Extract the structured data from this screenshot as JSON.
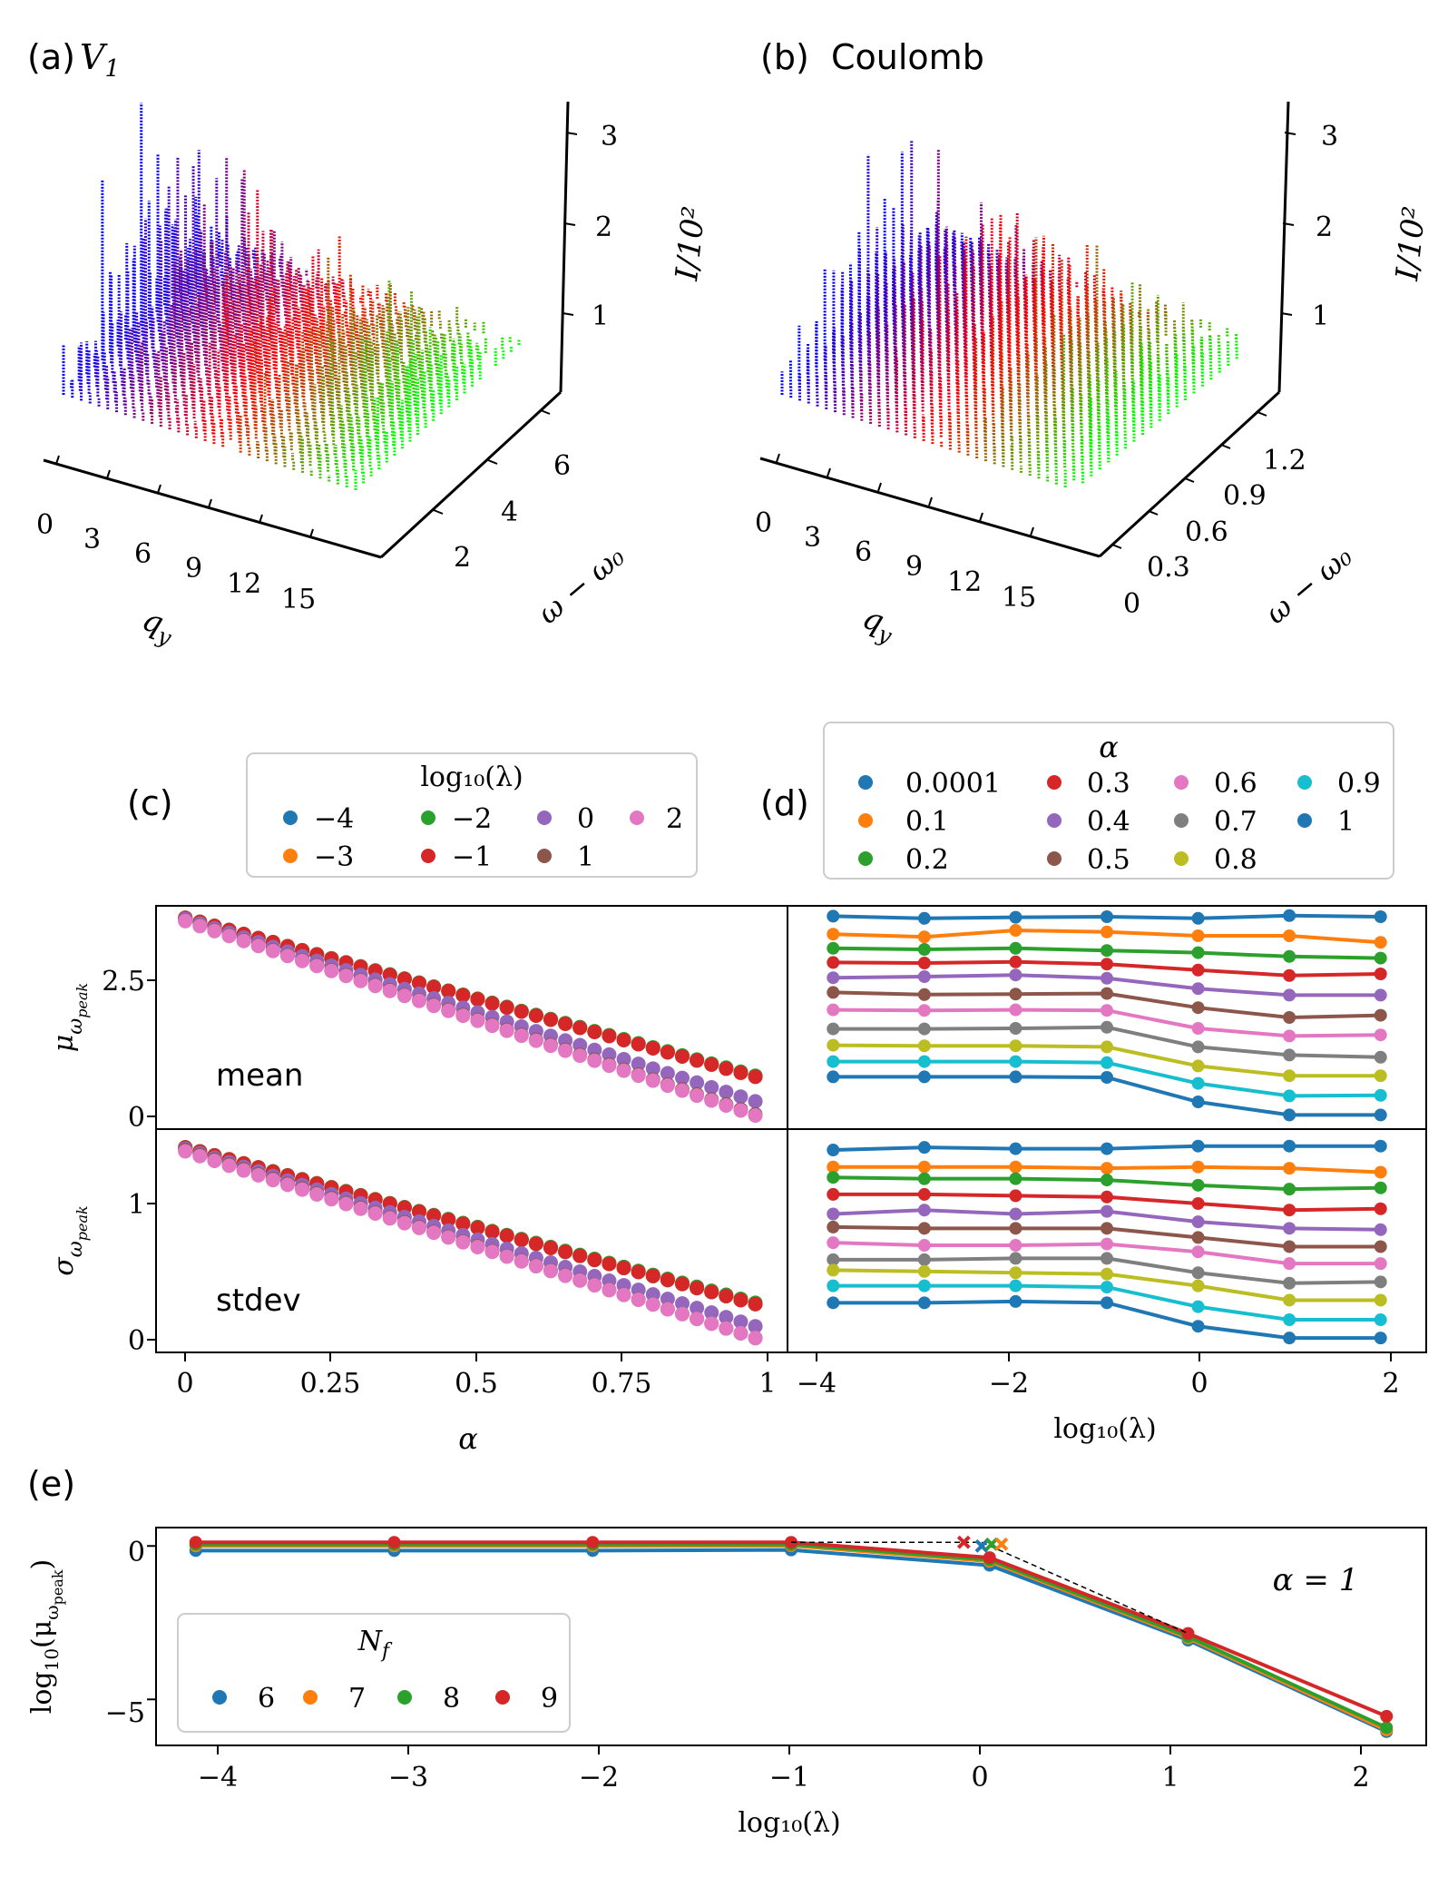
{
  "colors": {
    "blue": "#0000ff",
    "red": "#ff0000",
    "green": "#00ff00",
    "purple": "#7f00c0",
    "olive": "#808000"
  },
  "panel_a": {
    "label": "(a)",
    "title": "V",
    "title_sub": "1",
    "qy_ticks": [
      "0",
      "3",
      "6",
      "9",
      "12",
      "15"
    ],
    "w_ticks": [
      "2",
      "4",
      "6"
    ],
    "i_ticks": [
      "1",
      "2",
      "3"
    ],
    "x_label": "q",
    "x_label_sub": "y",
    "w_label": "ω − ω₀",
    "i_label": "I/10²"
  },
  "panel_b": {
    "label": "(b)",
    "title": "Coulomb",
    "qy_ticks": [
      "0",
      "3",
      "6",
      "9",
      "12",
      "15"
    ],
    "w_ticks": [
      "0",
      "0.3",
      "0.6",
      "0.9",
      "1.2"
    ],
    "i_ticks": [
      "1",
      "2",
      "3"
    ],
    "x_label": "q",
    "x_label_sub": "y",
    "w_label": "ω − ω₀",
    "i_label": "I/10²"
  },
  "panel_c": {
    "label": "(c)",
    "legend_title": "log₁₀(λ)",
    "legend_labels": [
      "−4",
      "−3",
      "−2",
      "−1",
      "0",
      "1",
      "2"
    ],
    "mean_text": "mean",
    "stdev_text": "stdev",
    "x_label": "α",
    "x_ticks": [
      "0",
      "0.25",
      "0.5",
      "0.75",
      "1"
    ],
    "y_label_top": "μ_ωpeak",
    "y_label_bottom": "σ_ωpeak",
    "y_ticks_top": [
      "0",
      "2.5"
    ],
    "y_ticks_bottom": [
      "0",
      "1"
    ]
  },
  "panel_d": {
    "label": "(d)",
    "legend_title": "α",
    "legend_labels": [
      "0.0001",
      "0.1",
      "0.2",
      "0.3",
      "0.4",
      "0.5",
      "0.6",
      "0.7",
      "0.8",
      "0.9",
      "1"
    ],
    "x_label": "log₁₀(λ)",
    "x_ticks": [
      "−4",
      "−2",
      "0",
      "2"
    ]
  },
  "panel_e": {
    "label": "(e)",
    "annotation": "α = 1",
    "legend_title": "N",
    "legend_title_sub": "f",
    "legend_labels": [
      "6",
      "7",
      "8",
      "9"
    ],
    "x_label": "log₁₀(λ)",
    "y_label": "log₁₀(μ_ωpeak)",
    "x_ticks": [
      "−4",
      "−3",
      "−2",
      "−1",
      "0",
      "1",
      "2"
    ],
    "y_ticks": [
      "−5",
      "0"
    ]
  },
  "chart_data": [
    {
      "id": "c-mean",
      "type": "scatter",
      "title": "mean",
      "xlabel": "α",
      "ylabel": "μ_ωpeak",
      "xlim": [
        -0.05,
        1.03
      ],
      "ylim": [
        -0.25,
        3.85
      ],
      "series_params": [
        {
          "name": "−4",
          "color": "#1f77b4",
          "start": 3.63,
          "end": 0.72
        },
        {
          "name": "−3",
          "color": "#ff7f0e",
          "start": 3.63,
          "end": 0.72
        },
        {
          "name": "−2",
          "color": "#2ca02c",
          "start": 3.63,
          "end": 0.73
        },
        {
          "name": "−1",
          "color": "#d62728",
          "start": 3.63,
          "end": 0.71
        },
        {
          "name": "0",
          "color": "#9467bd",
          "start": 3.61,
          "end": 0.26
        },
        {
          "name": "1",
          "color": "#8c564b",
          "start": 3.58,
          "end": 0.02
        },
        {
          "name": "2",
          "color": "#e377c2",
          "start": 3.57,
          "end": 0.0
        }
      ],
      "x_start": 0.0,
      "x_step": 0.025,
      "n_points": 40
    },
    {
      "id": "c-stdev",
      "type": "scatter",
      "title": "stdev",
      "xlabel": "α",
      "ylabel": "σ_ωpeak",
      "xlim": [
        -0.05,
        1.03
      ],
      "ylim": [
        -0.11,
        1.6
      ],
      "series_params": [
        {
          "name": "−4",
          "color": "#1f77b4",
          "start": 1.46,
          "end": 0.26
        },
        {
          "name": "−3",
          "color": "#ff7f0e",
          "start": 1.46,
          "end": 0.26
        },
        {
          "name": "−2",
          "color": "#2ca02c",
          "start": 1.46,
          "end": 0.27
        },
        {
          "name": "−1",
          "color": "#d62728",
          "start": 1.46,
          "end": 0.26
        },
        {
          "name": "0",
          "color": "#9467bd",
          "start": 1.45,
          "end": 0.09
        },
        {
          "name": "1",
          "color": "#8c564b",
          "start": 1.44,
          "end": 0.0
        },
        {
          "name": "2",
          "color": "#e377c2",
          "start": 1.43,
          "end": 0.0
        }
      ],
      "x_start": 0.0,
      "x_step": 0.025,
      "n_points": 40
    },
    {
      "id": "d-mean",
      "type": "line",
      "xlabel": "log₁₀(λ)",
      "ylabel": "μ_ωpeak",
      "x": [
        -4,
        -3,
        -2,
        -1,
        0,
        1,
        2
      ],
      "xlim": [
        -4.5,
        2.5
      ],
      "ylim": [
        -0.25,
        3.85
      ],
      "series": [
        {
          "name": "0.0001",
          "color": "#1f77b4",
          "values": [
            3.66,
            3.62,
            3.64,
            3.65,
            3.62,
            3.67,
            3.65
          ]
        },
        {
          "name": "0.1",
          "color": "#ff7f0e",
          "values": [
            3.33,
            3.28,
            3.4,
            3.37,
            3.3,
            3.3,
            3.18
          ]
        },
        {
          "name": "0.2",
          "color": "#2ca02c",
          "values": [
            3.07,
            3.05,
            3.07,
            3.03,
            2.99,
            2.92,
            2.89
          ]
        },
        {
          "name": "0.3",
          "color": "#d62728",
          "values": [
            2.81,
            2.8,
            2.82,
            2.78,
            2.67,
            2.57,
            2.6
          ]
        },
        {
          "name": "0.4",
          "color": "#9467bd",
          "values": [
            2.53,
            2.55,
            2.58,
            2.52,
            2.33,
            2.21,
            2.21
          ]
        },
        {
          "name": "0.5",
          "color": "#8c564b",
          "values": [
            2.26,
            2.22,
            2.23,
            2.24,
            1.98,
            1.8,
            1.84
          ]
        },
        {
          "name": "0.6",
          "color": "#e377c2",
          "values": [
            1.94,
            1.93,
            1.94,
            1.93,
            1.6,
            1.46,
            1.48
          ]
        },
        {
          "name": "0.7",
          "color": "#7f7f7f",
          "values": [
            1.59,
            1.59,
            1.6,
            1.62,
            1.26,
            1.11,
            1.07
          ]
        },
        {
          "name": "0.8",
          "color": "#bcbd22",
          "values": [
            1.29,
            1.28,
            1.28,
            1.26,
            0.91,
            0.73,
            0.73
          ]
        },
        {
          "name": "0.9",
          "color": "#17becf",
          "values": [
            0.99,
            0.99,
            0.99,
            0.97,
            0.59,
            0.36,
            0.37
          ]
        },
        {
          "name": "1",
          "color": "#1f77b4",
          "values": [
            0.71,
            0.71,
            0.71,
            0.7,
            0.25,
            0.01,
            0.01
          ]
        }
      ]
    },
    {
      "id": "d-stdev",
      "type": "line",
      "xlabel": "log₁₀(λ)",
      "ylabel": "σ_ωpeak",
      "x": [
        -4,
        -3,
        -2,
        -1,
        0,
        1,
        2
      ],
      "xlim": [
        -4.5,
        2.5
      ],
      "ylim": [
        -0.11,
        1.6
      ],
      "series": [
        {
          "name": "0.0001",
          "color": "#1f77b4",
          "values": [
            1.44,
            1.46,
            1.45,
            1.45,
            1.47,
            1.47,
            1.47
          ]
        },
        {
          "name": "0.1",
          "color": "#ff7f0e",
          "values": [
            1.31,
            1.31,
            1.31,
            1.3,
            1.31,
            1.3,
            1.27
          ]
        },
        {
          "name": "0.2",
          "color": "#2ca02c",
          "values": [
            1.23,
            1.22,
            1.22,
            1.21,
            1.17,
            1.14,
            1.15
          ]
        },
        {
          "name": "0.3",
          "color": "#d62728",
          "values": [
            1.1,
            1.1,
            1.09,
            1.08,
            1.03,
            0.98,
            0.99
          ]
        },
        {
          "name": "0.4",
          "color": "#9467bd",
          "values": [
            0.95,
            0.98,
            0.95,
            0.97,
            0.89,
            0.84,
            0.83
          ]
        },
        {
          "name": "0.5",
          "color": "#8c564b",
          "values": [
            0.85,
            0.84,
            0.84,
            0.84,
            0.77,
            0.7,
            0.7
          ]
        },
        {
          "name": "0.6",
          "color": "#e377c2",
          "values": [
            0.73,
            0.71,
            0.71,
            0.72,
            0.66,
            0.57,
            0.57
          ]
        },
        {
          "name": "0.7",
          "color": "#7f7f7f",
          "values": [
            0.6,
            0.6,
            0.61,
            0.61,
            0.5,
            0.42,
            0.43
          ]
        },
        {
          "name": "0.8",
          "color": "#bcbd22",
          "values": [
            0.52,
            0.51,
            0.5,
            0.49,
            0.4,
            0.29,
            0.29
          ]
        },
        {
          "name": "0.9",
          "color": "#17becf",
          "values": [
            0.4,
            0.4,
            0.4,
            0.39,
            0.24,
            0.14,
            0.14
          ]
        },
        {
          "name": "1",
          "color": "#1f77b4",
          "values": [
            0.27,
            0.27,
            0.28,
            0.27,
            0.09,
            0.0,
            0.0
          ]
        }
      ]
    },
    {
      "id": "e",
      "type": "line",
      "title": "α = 1",
      "xlabel": "log₁₀(λ)",
      "ylabel": "log₁₀(μ_ωpeak)",
      "x": [
        -4,
        -3,
        -2,
        -1,
        0,
        1,
        2
      ],
      "xlim": [
        -4.2,
        2.2
      ],
      "ylim": [
        -6.5,
        0.6
      ],
      "series": [
        {
          "name": "6",
          "color": "#1f77b4",
          "values": [
            -0.15,
            -0.15,
            -0.15,
            -0.13,
            -0.63,
            -3.07,
            -6.05
          ]
        },
        {
          "name": "7",
          "color": "#ff7f0e",
          "values": [
            0.0,
            0.0,
            0.0,
            0.01,
            -0.5,
            -3.0,
            -6.0
          ]
        },
        {
          "name": "8",
          "color": "#2ca02c",
          "values": [
            0.05,
            0.05,
            0.05,
            0.05,
            -0.45,
            -2.95,
            -5.92
          ]
        },
        {
          "name": "9",
          "color": "#d62728",
          "values": [
            0.12,
            0.12,
            0.12,
            0.12,
            -0.38,
            -2.85,
            -5.55
          ]
        }
      ],
      "crosses": [
        {
          "name": "9",
          "color": "#d62728",
          "x": -0.13,
          "y": 0.12
        },
        {
          "name": "6",
          "color": "#1f77b4",
          "x": -0.04,
          "y": 0.0
        },
        {
          "name": "8",
          "color": "#2ca02c",
          "x": 0.01,
          "y": 0.06
        },
        {
          "name": "7",
          "color": "#ff7f0e",
          "x": 0.06,
          "y": 0.06
        }
      ],
      "dashed_path": [
        [
          -1,
          0.12
        ],
        [
          -0.04,
          0.12
        ],
        [
          1,
          -2.85
        ]
      ]
    }
  ]
}
